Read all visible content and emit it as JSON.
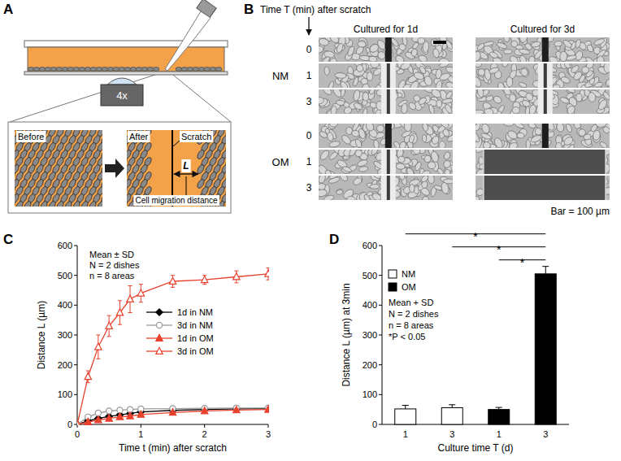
{
  "panel_a": {
    "letter": "A",
    "objective": "4x",
    "before": "Before",
    "after": "After",
    "scratch": "Scratch",
    "distance": "L",
    "distance_label": "Cell migration distance"
  },
  "panel_b": {
    "letter": "B",
    "header": "Time T (min) after scratch",
    "columns": [
      "Cultured for 1d",
      "Cultured for 3d"
    ],
    "groups": [
      {
        "name": "NM",
        "times": [
          0,
          1,
          3
        ]
      },
      {
        "name": "OM",
        "times": [
          0,
          1,
          3
        ]
      }
    ],
    "scale_bar": "Bar = 100 µm"
  },
  "chart_data": [
    {
      "letter": "C",
      "type": "line",
      "x_label": "Time t (min) after scratch",
      "y_label": "Distance L (µm)",
      "annotations": [
        "Mean ± SD",
        "N = 2 dishes",
        "n = 8 areas"
      ],
      "x": [
        0,
        0.17,
        0.33,
        0.5,
        0.67,
        0.83,
        1,
        1.5,
        2,
        2.5,
        3
      ],
      "xlim": [
        0,
        3
      ],
      "xticks": [
        0,
        1,
        2,
        3
      ],
      "ylim": [
        0,
        600
      ],
      "yticks": [
        0,
        100,
        200,
        300,
        400,
        500,
        600
      ],
      "legend": "center",
      "series": [
        {
          "name": "1d in NM",
          "color": "#000000",
          "marker": "diamond",
          "values": [
            0,
            12,
            20,
            27,
            32,
            37,
            42,
            47,
            50,
            52,
            53
          ],
          "errors": [
            0,
            4,
            5,
            5,
            6,
            6,
            6,
            6,
            6,
            6,
            6
          ]
        },
        {
          "name": "3d in NM",
          "color": "#999999",
          "marker": "open-circle",
          "values": [
            0,
            25,
            38,
            45,
            48,
            50,
            52,
            53,
            54,
            55,
            55
          ],
          "errors": [
            0,
            6,
            7,
            8,
            8,
            8,
            8,
            8,
            8,
            8,
            8
          ]
        },
        {
          "name": "1d in OM",
          "color": "#e8412c",
          "marker": "triangle",
          "values": [
            0,
            8,
            15,
            20,
            25,
            28,
            33,
            40,
            45,
            48,
            50
          ],
          "errors": [
            0,
            3,
            4,
            4,
            5,
            5,
            5,
            5,
            5,
            5,
            5
          ]
        },
        {
          "name": "3d in OM",
          "color": "#e8412c",
          "marker": "open-triangle",
          "values": [
            0,
            160,
            260,
            330,
            375,
            420,
            440,
            480,
            485,
            495,
            505
          ],
          "errors": [
            0,
            20,
            40,
            35,
            40,
            45,
            30,
            20,
            15,
            20,
            20
          ]
        }
      ]
    },
    {
      "letter": "D",
      "type": "bar",
      "x_label": "Culture time T (d)",
      "y_label": "Distance L (µm) at 3min",
      "annotations": [
        "Mean + SD",
        "N = 2 dishes",
        "n = 8 areas",
        "*P < 0.05"
      ],
      "categories": [
        "1",
        "3",
        "1",
        "3"
      ],
      "ylim": [
        0,
        600
      ],
      "yticks": [
        0,
        100,
        200,
        300,
        400,
        500,
        600
      ],
      "legend": "upper left",
      "series": [
        {
          "name": "NM",
          "color": "#ffffff",
          "values": [
            52,
            56,
            null,
            null
          ],
          "errors": [
            12,
            10,
            null,
            null
          ]
        },
        {
          "name": "OM",
          "color": "#000000",
          "values": [
            null,
            null,
            50,
            505
          ],
          "errors": [
            null,
            null,
            7,
            25
          ]
        }
      ],
      "significance": [
        {
          "from": 0,
          "to": 3,
          "label": "*"
        },
        {
          "from": 1,
          "to": 3,
          "label": "*"
        },
        {
          "from": 2,
          "to": 3,
          "label": "*"
        }
      ]
    }
  ]
}
